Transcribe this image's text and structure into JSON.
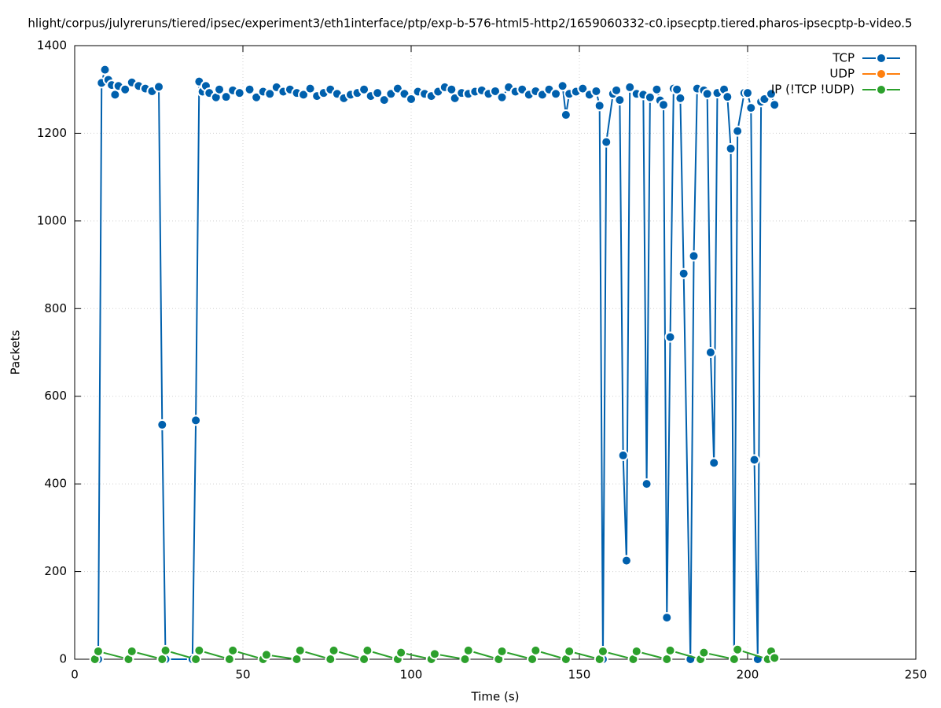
{
  "chart_data": {
    "type": "line",
    "title": "hlight/corpus/julyreruns/tiered/ipsec/experiment3/eth1interface/ptp/exp-b-576-html5-http2/1659060332-c0.ipsecptp.tiered.pharos-ipsecptp-b-video.5",
    "x_label": "Time (s)",
    "y_label": "Packets",
    "xlim": [
      0,
      250
    ],
    "xticks": [
      0,
      50,
      100,
      150,
      200,
      250
    ],
    "ylim": [
      0,
      1400
    ],
    "yticks": [
      0,
      200,
      400,
      600,
      800,
      1000,
      1200,
      1400
    ],
    "grid": true,
    "legend": "top-right",
    "series": [
      {
        "name": "TCP",
        "color": "#0060ad",
        "x": [
          7,
          8,
          9,
          10,
          11,
          12,
          13,
          15,
          17,
          19,
          21,
          23,
          25,
          26,
          27,
          35,
          36,
          37,
          38,
          39,
          40,
          42,
          43,
          45,
          47,
          49,
          52,
          54,
          56,
          58,
          60,
          62,
          64,
          66,
          68,
          70,
          72,
          74,
          76,
          78,
          80,
          82,
          84,
          86,
          88,
          90,
          92,
          94,
          96,
          98,
          100,
          102,
          104,
          106,
          108,
          110,
          112,
          113,
          115,
          117,
          119,
          121,
          123,
          125,
          127,
          129,
          131,
          133,
          135,
          137,
          139,
          141,
          143,
          145,
          146,
          147,
          149,
          151,
          153,
          155,
          156,
          157,
          158,
          160,
          161,
          162,
          163,
          164,
          165,
          167,
          169,
          170,
          171,
          173,
          174,
          175,
          176,
          177,
          178,
          179,
          180,
          181,
          183,
          184,
          185,
          187,
          188,
          189,
          190,
          191,
          193,
          194,
          195,
          196,
          197,
          199,
          200,
          201,
          202,
          203,
          204,
          205,
          207,
          208
        ],
        "values": [
          0,
          1315,
          1345,
          1322,
          1310,
          1288,
          1308,
          1300,
          1316,
          1308,
          1302,
          1296,
          1306,
          535,
          0,
          0,
          545,
          1318,
          1295,
          1308,
          1292,
          1282,
          1300,
          1283,
          1298,
          1292,
          1300,
          1282,
          1295,
          1290,
          1305,
          1295,
          1300,
          1292,
          1288,
          1302,
          1285,
          1292,
          1300,
          1290,
          1280,
          1288,
          1292,
          1300,
          1285,
          1292,
          1276,
          1290,
          1302,
          1290,
          1278,
          1295,
          1290,
          1285,
          1295,
          1305,
          1300,
          1280,
          1292,
          1290,
          1295,
          1298,
          1290,
          1296,
          1282,
          1305,
          1295,
          1300,
          1288,
          1296,
          1288,
          1300,
          1290,
          1308,
          1242,
          1290,
          1295,
          1302,
          1288,
          1296,
          1263,
          0,
          1180,
          1290,
          1298,
          1276,
          465,
          225,
          1305,
          1290,
          1288,
          400,
          1282,
          1300,
          1275,
          1265,
          95,
          735,
          1302,
          1300,
          1280,
          880,
          0,
          920,
          1302,
          1298,
          1290,
          700,
          448,
          1292,
          1300,
          1283,
          1165,
          0,
          1205,
          1292,
          1292,
          1258,
          455,
          0,
          1272,
          1278,
          1290,
          1265
        ]
      },
      {
        "name": "UDP",
        "color": "#ff7f0e",
        "x": [],
        "values": []
      },
      {
        "name": "IP (!TCP  !UDP)",
        "color": "#2ca02c",
        "x": [
          6,
          7,
          16,
          17,
          26,
          27,
          36,
          37,
          46,
          47,
          56,
          57,
          66,
          67,
          76,
          77,
          86,
          87,
          96,
          97,
          106,
          107,
          116,
          117,
          126,
          127,
          136,
          137,
          146,
          147,
          156,
          157,
          166,
          167,
          176,
          177,
          186,
          187,
          196,
          197,
          206,
          207,
          208
        ],
        "values": [
          0,
          18,
          0,
          18,
          0,
          20,
          0,
          20,
          0,
          20,
          0,
          10,
          0,
          20,
          0,
          20,
          0,
          20,
          0,
          15,
          0,
          12,
          0,
          20,
          0,
          18,
          0,
          20,
          0,
          18,
          0,
          18,
          0,
          18,
          0,
          20,
          0,
          15,
          0,
          22,
          0,
          18,
          3
        ]
      }
    ]
  }
}
